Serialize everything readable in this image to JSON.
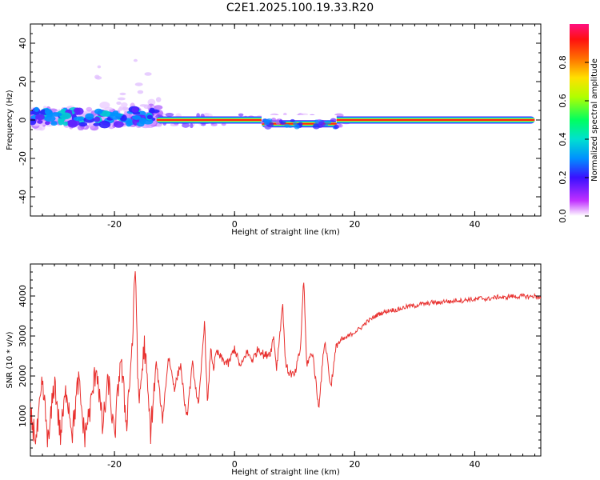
{
  "title": "C2E1.2025.100.19.33.R20",
  "chart_data": [
    {
      "type": "heatmap",
      "xlabel": "Height of straight line (km)",
      "ylabel": "Frequency (Hz)",
      "xlim": [
        -34,
        51
      ],
      "ylim": [
        -50,
        50
      ],
      "xticks": [
        "-20",
        "0",
        "20",
        "40"
      ],
      "yticks": [
        "40",
        "20",
        "0",
        "-20",
        "-40"
      ],
      "colorbar": {
        "label": "Normalized spectral amplitude",
        "range": [
          0,
          1
        ],
        "ticks": [
          "0.0",
          "0.2",
          "0.4",
          "0.6",
          "0.8"
        ]
      },
      "ridge": {
        "x_start": -13,
        "x_end": 50,
        "frequency": 0,
        "amplitude": 1.0
      },
      "scattered_region": {
        "x_start": -34,
        "x_end": -13,
        "frequency_range": [
          -5,
          32
        ]
      },
      "dip_region": {
        "x_start": 4.5,
        "x_end": 17,
        "frequency": -2
      }
    },
    {
      "type": "line",
      "xlabel": "Height of straight line (km)",
      "ylabel": "SNR (10 * v/v)",
      "xlim": [
        -34,
        51
      ],
      "ylim": [
        0,
        4800
      ],
      "xticks": [
        "-20",
        "0",
        "20",
        "40"
      ],
      "yticks": [
        "4000",
        "3000",
        "2000",
        "1000"
      ],
      "color": "#e8302e",
      "series": [
        {
          "x": [
            -34,
            -33,
            -32,
            -31,
            -30,
            -29,
            -28,
            -27,
            -26,
            -25,
            -24,
            -23,
            -22,
            -21,
            -20,
            -19,
            -18,
            -17,
            -16.5,
            -16,
            -15,
            -14,
            -13,
            -12,
            -11,
            -10,
            -9,
            -8,
            -7,
            -6,
            -5,
            -4.5,
            -4,
            -3.5,
            -3,
            -2,
            -1,
            0,
            1,
            2,
            3,
            4,
            5,
            6,
            6.5,
            7,
            8,
            8.5,
            9,
            10,
            11,
            11.5,
            12,
            13,
            14,
            15,
            15.5,
            16,
            17,
            18,
            19,
            20,
            21,
            22,
            23,
            24,
            25,
            26,
            27,
            28,
            29,
            30,
            31,
            32,
            33,
            34,
            35,
            36,
            37,
            38,
            39,
            40,
            41,
            42,
            43,
            44,
            45,
            46,
            47,
            48,
            49,
            50,
            51
          ],
          "y": [
            1000,
            400,
            1800,
            300,
            1900,
            500,
            1700,
            600,
            1900,
            500,
            1200,
            2300,
            700,
            1900,
            400,
            2500,
            800,
            2900,
            4800,
            1200,
            2800,
            600,
            2300,
            900,
            2500,
            1700,
            2300,
            900,
            2300,
            1200,
            3400,
            1200,
            2700,
            2200,
            2600,
            2400,
            2300,
            2700,
            2200,
            2600,
            2400,
            2700,
            2500,
            2600,
            3000,
            2200,
            3800,
            2300,
            2100,
            2000,
            2700,
            4500,
            2300,
            2600,
            1200,
            2900,
            2400,
            1700,
            2800,
            2900,
            3000,
            3100,
            3200,
            3350,
            3450,
            3550,
            3600,
            3650,
            3650,
            3700,
            3750,
            3750,
            3800,
            3800,
            3850,
            3820,
            3880,
            3850,
            3900,
            3880,
            3920,
            3900,
            3950,
            3920,
            3950,
            3980,
            3950,
            4000,
            3980,
            4000,
            3980,
            4000,
            3950
          ]
        }
      ]
    }
  ]
}
